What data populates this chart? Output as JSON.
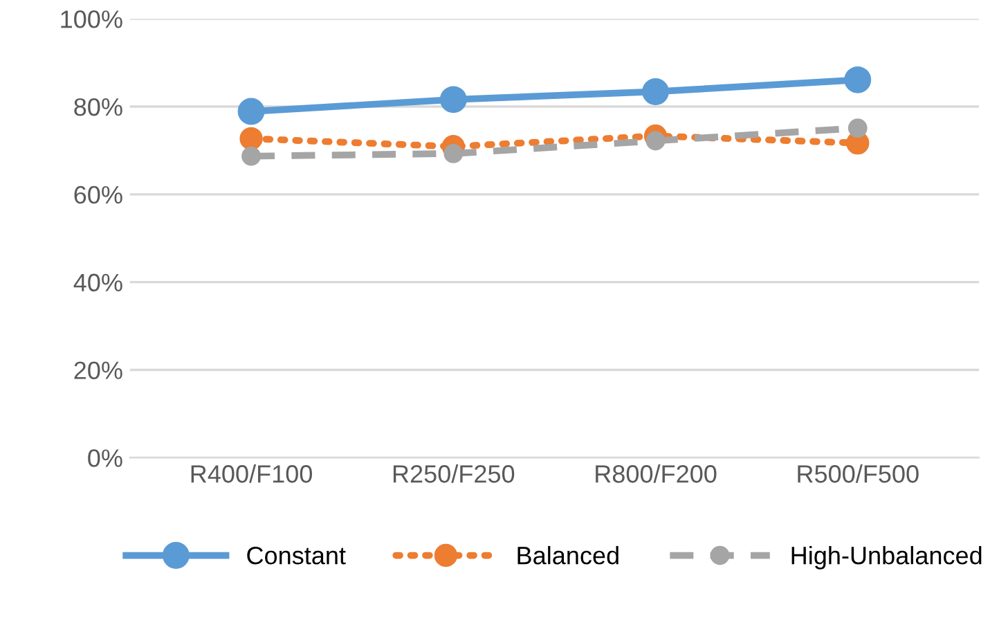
{
  "chart_data": {
    "type": "line",
    "categories": [
      "R400/F100",
      "R250/F250",
      "R800/F200",
      "R500/F500"
    ],
    "series": [
      {
        "name": "Constant",
        "color": "#5b9bd5",
        "values": [
          78.9,
          81.6,
          83.4,
          86.1
        ],
        "line_style": "solid"
      },
      {
        "name": "Balanced",
        "color": "#ed7d31",
        "values": [
          72.7,
          70.9,
          73.3,
          71.7
        ],
        "line_style": "dotted"
      },
      {
        "name": "High-Unbalanced",
        "color": "#a5a5a5",
        "values": [
          68.7,
          69.3,
          72.2,
          75.1
        ],
        "line_style": "dashed"
      }
    ],
    "ylim": [
      0,
      100
    ],
    "yticks": [
      {
        "value": 0,
        "label": "0%"
      },
      {
        "value": 20,
        "label": "20%"
      },
      {
        "value": 40,
        "label": "40%"
      },
      {
        "value": 60,
        "label": "60%"
      },
      {
        "value": 80,
        "label": "80%"
      },
      {
        "value": 100,
        "label": "100%"
      }
    ],
    "grid": "y",
    "legend": "bottom",
    "marker": "circle"
  }
}
